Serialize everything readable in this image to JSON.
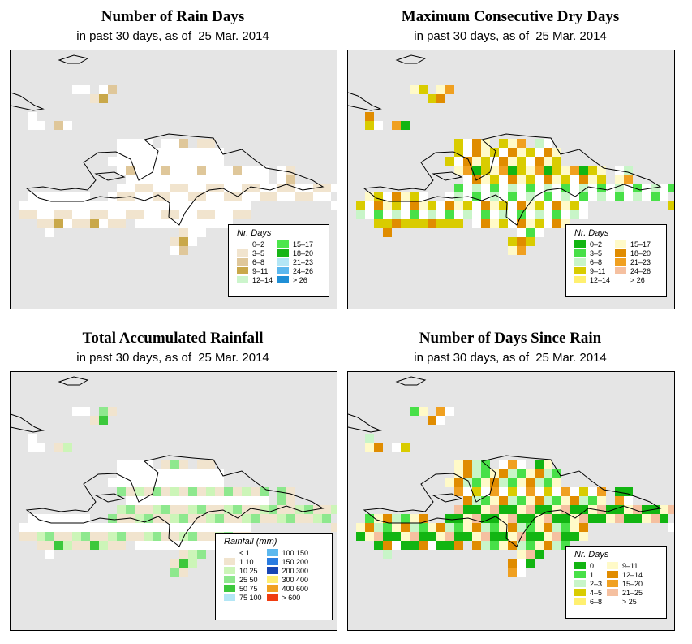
{
  "panels": [
    {
      "title": "Number of Rain Days",
      "subtitle_prefix": "in past 30 days, as of",
      "date": "25 Mar. 2014",
      "legend_title": "Nr. Days",
      "legend": [
        {
          "label": "0–2",
          "color": "#ffffff"
        },
        {
          "label": "3–5",
          "color": "#f1e4ce"
        },
        {
          "label": "6–8",
          "color": "#dfc79a"
        },
        {
          "label": "9–11",
          "color": "#c9a84a"
        },
        {
          "label": "12–14",
          "color": "#ccf5cc"
        },
        {
          "label": "15–17",
          "color": "#4ce64c"
        },
        {
          "label": "18–20",
          "color": "#17b517"
        },
        {
          "label": "21–23",
          "color": "#b3e6f5"
        },
        {
          "label": "24–26",
          "color": "#5cb8ee"
        },
        {
          "label": "> 26",
          "color": "#1f8fd6"
        }
      ]
    },
    {
      "title": "Maximum Consecutive Dry Days",
      "subtitle_prefix": "in past 30 days, as of",
      "date": "25 Mar. 2014",
      "legend_title": "Nr. Days",
      "legend": [
        {
          "label": "0–2",
          "color": "#12b512"
        },
        {
          "label": "3–5",
          "color": "#48e048"
        },
        {
          "label": "6–8",
          "color": "#c8f5c8"
        },
        {
          "label": "9–11",
          "color": "#d9cc00"
        },
        {
          "label": "12–14",
          "color": "#fff070"
        },
        {
          "label": "15–17",
          "color": "#fffac8"
        },
        {
          "label": "18–20",
          "color": "#e08c00"
        },
        {
          "label": "21–23",
          "color": "#f0a020"
        },
        {
          "label": "24–26",
          "color": "#f5c0a0"
        },
        {
          "label": "> 26",
          "color": "#ffffff"
        }
      ]
    },
    {
      "title": "Total Accumulated Rainfall",
      "subtitle_prefix": "in past 30 days, as of",
      "date": "25 Mar. 2014",
      "legend_title": "Rainfall (mm)",
      "legend": [
        {
          "label": "< 1",
          "color": "#ffffff"
        },
        {
          "label": "1   10",
          "color": "#f1e4ce"
        },
        {
          "label": "10   25",
          "color": "#ccf5b8"
        },
        {
          "label": "25   50",
          "color": "#8ee88e"
        },
        {
          "label": "50   75",
          "color": "#3cc83c"
        },
        {
          "label": "75   100",
          "color": "#b3e6f5"
        },
        {
          "label": "100   150",
          "color": "#5cb8ee"
        },
        {
          "label": "150   200",
          "color": "#2a7ce0"
        },
        {
          "label": "200   300",
          "color": "#1846b4"
        },
        {
          "label": "300   400",
          "color": "#ffee70"
        },
        {
          "label": "400   600",
          "color": "#f0a020"
        },
        {
          "label": "> 600",
          "color": "#f03c10"
        }
      ]
    },
    {
      "title": "Number of Days Since Rain",
      "subtitle_prefix": "in past 30 days, as of",
      "date": "25 Mar. 2014",
      "legend_title": "Nr. Days",
      "legend": [
        {
          "label": "0",
          "color": "#12b512"
        },
        {
          "label": "1",
          "color": "#48e048"
        },
        {
          "label": "2–3",
          "color": "#c8f5c8"
        },
        {
          "label": "4–5",
          "color": "#d9cc00"
        },
        {
          "label": "6–8",
          "color": "#fff070"
        },
        {
          "label": "9–11",
          "color": "#fffac8"
        },
        {
          "label": "12–14",
          "color": "#e08c00"
        },
        {
          "label": "15–20",
          "color": "#f0a020"
        },
        {
          "label": "21–25",
          "color": "#f5c0a0"
        },
        {
          "label": "> 25",
          "color": "#ffffff"
        }
      ]
    }
  ]
}
